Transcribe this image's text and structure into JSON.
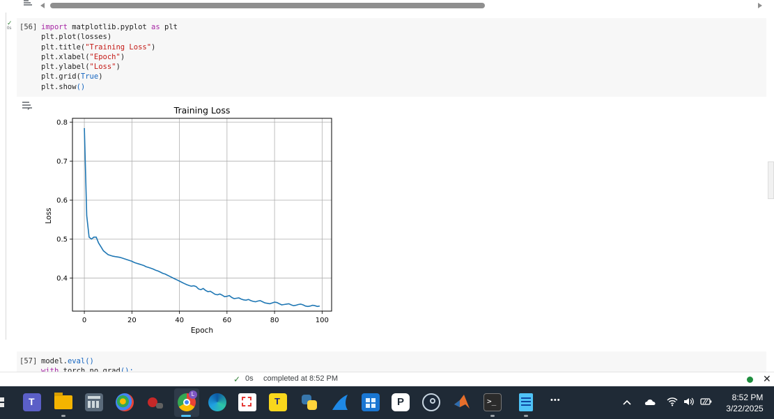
{
  "cell1": {
    "prompt": "[56]",
    "run_time": "0s",
    "code_lines": [
      {
        "parts": [
          {
            "t": "import",
            "c": "kw"
          },
          {
            "t": " matplotlib.pyplot ",
            "c": "fn"
          },
          {
            "t": "as",
            "c": "kw"
          },
          {
            "t": " plt",
            "c": "fn"
          }
        ]
      },
      {
        "parts": [
          {
            "t": "plt.plot(losses)",
            "c": "fn"
          }
        ]
      },
      {
        "parts": [
          {
            "t": "plt.title(",
            "c": "fn"
          },
          {
            "t": "\"Training Loss\"",
            "c": "str"
          },
          {
            "t": ")",
            "c": "fn"
          }
        ]
      },
      {
        "parts": [
          {
            "t": "plt.xlabel(",
            "c": "fn"
          },
          {
            "t": "\"Epoch\"",
            "c": "str"
          },
          {
            "t": ")",
            "c": "fn"
          }
        ]
      },
      {
        "parts": [
          {
            "t": "plt.ylabel(",
            "c": "fn"
          },
          {
            "t": "\"Loss\"",
            "c": "str"
          },
          {
            "t": ")",
            "c": "fn"
          }
        ]
      },
      {
        "parts": [
          {
            "t": "plt.grid(",
            "c": "fn"
          },
          {
            "t": "True",
            "c": "tk"
          },
          {
            "t": ")",
            "c": "fn"
          }
        ]
      },
      {
        "parts": [
          {
            "t": "plt.show",
            "c": "fn"
          },
          {
            "t": "()",
            "c": "tk"
          }
        ]
      }
    ]
  },
  "cell2": {
    "prompt": "[57]",
    "run_time": "0s",
    "code_lines": [
      {
        "parts": [
          {
            "t": "model.",
            "c": "fn"
          },
          {
            "t": "eval",
            "c": "tk"
          },
          {
            "t": "()",
            "c": "tk"
          }
        ]
      },
      {
        "parts": [
          {
            "t": "with",
            "c": "kw"
          },
          {
            "t": " torch.no_grad",
            "c": "fn"
          },
          {
            "t": "():",
            "c": "tk"
          }
        ]
      }
    ]
  },
  "chart_data": {
    "type": "line",
    "title": "Training Loss",
    "xlabel": "Epoch",
    "ylabel": "Loss",
    "xlim": [
      -5,
      104
    ],
    "ylim": [
      0.315,
      0.81
    ],
    "xticks": [
      0,
      20,
      40,
      60,
      80,
      100
    ],
    "yticks": [
      0.4,
      0.5,
      0.6,
      0.7,
      0.8
    ],
    "grid": true,
    "series": [
      {
        "color": "#1f77b4",
        "x": [
          0,
          1,
          2,
          3,
          4,
          5,
          6,
          7,
          8,
          9,
          10,
          11,
          12,
          13,
          14,
          15,
          16,
          17,
          18,
          19,
          20,
          21,
          22,
          23,
          24,
          25,
          26,
          27,
          28,
          29,
          30,
          31,
          32,
          33,
          34,
          35,
          36,
          37,
          38,
          39,
          40,
          41,
          42,
          43,
          44,
          45,
          46,
          47,
          48,
          49,
          50,
          51,
          52,
          53,
          54,
          55,
          56,
          57,
          58,
          59,
          60,
          61,
          62,
          63,
          64,
          65,
          66,
          67,
          68,
          69,
          70,
          71,
          72,
          73,
          74,
          75,
          76,
          77,
          78,
          79,
          80,
          81,
          82,
          83,
          84,
          85,
          86,
          87,
          88,
          89,
          90,
          91,
          92,
          93,
          94,
          95,
          96,
          97,
          98,
          99
        ],
        "y": [
          0.785,
          0.56,
          0.505,
          0.5,
          0.505,
          0.505,
          0.49,
          0.48,
          0.47,
          0.465,
          0.46,
          0.458,
          0.456,
          0.455,
          0.454,
          0.453,
          0.451,
          0.449,
          0.447,
          0.445,
          0.443,
          0.44,
          0.438,
          0.436,
          0.434,
          0.432,
          0.429,
          0.427,
          0.425,
          0.423,
          0.42,
          0.418,
          0.415,
          0.412,
          0.41,
          0.407,
          0.404,
          0.401,
          0.398,
          0.395,
          0.392,
          0.389,
          0.386,
          0.383,
          0.381,
          0.379,
          0.38,
          0.378,
          0.372,
          0.37,
          0.373,
          0.368,
          0.365,
          0.366,
          0.362,
          0.358,
          0.357,
          0.359,
          0.356,
          0.352,
          0.353,
          0.355,
          0.35,
          0.347,
          0.348,
          0.349,
          0.346,
          0.344,
          0.343,
          0.345,
          0.342,
          0.34,
          0.339,
          0.341,
          0.342,
          0.339,
          0.336,
          0.335,
          0.334,
          0.336,
          0.338,
          0.337,
          0.334,
          0.331,
          0.332,
          0.333,
          0.334,
          0.331,
          0.329,
          0.33,
          0.332,
          0.333,
          0.331,
          0.328,
          0.327,
          0.328,
          0.33,
          0.329,
          0.327,
          0.328
        ]
      }
    ]
  },
  "statusbar": {
    "check": "✓",
    "time": "0s",
    "text": "completed at 8:52 PM",
    "close": "✕"
  },
  "taskbar": {
    "more": "•••",
    "clock_time": "8:52 PM",
    "clock_date": "3/22/2025",
    "icons": [
      "windows-start-icon",
      "teams-icon",
      "file-explorer-icon",
      "calculator-icon",
      "paint-icon",
      "mouse-app-icon",
      "chrome-icon",
      "edge-icon",
      "snipping-tool-icon",
      "typing-app-icon",
      "python-icon",
      "sharkfin-app-icon",
      "store-icon",
      "p-app-icon",
      "steam-icon",
      "matlab-icon",
      "terminal-icon",
      "notepad-icon"
    ]
  }
}
